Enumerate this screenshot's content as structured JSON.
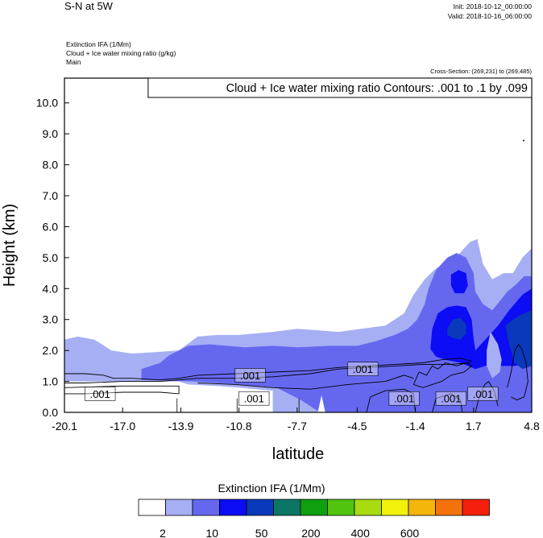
{
  "header": {
    "title": "S-N at 5W",
    "init": "Init: 2018-10-12_00:00:00",
    "valid": "Valid: 2018-10-16_06:00:00",
    "subtitle_lines": [
      "Extinction IFA   (1/Mm)",
      "Cloud + Ice water mixing ratio   (g/kg)",
      "Main"
    ],
    "cross_section": "Cross-Section: (269,231) to (269,485)"
  },
  "chart_data": {
    "type": "heatmap",
    "title": "Cloud + Ice water mixing ratio Contours: .001 to .1 by .099",
    "xlabel": "latitude",
    "ylabel": "Height (km)",
    "xlim": [
      -20.1,
      4.8
    ],
    "ylim": [
      0.0,
      10.8
    ],
    "x_ticks": [
      "-20.1",
      "-17.0",
      "-13.9",
      "-10.8",
      "-7.7",
      "-4.5",
      "-1.4",
      "1.7",
      "4.8"
    ],
    "x_tick_values": [
      -20.1,
      -17.0,
      -13.9,
      -10.8,
      -7.7,
      -4.5,
      -1.4,
      1.7,
      4.8
    ],
    "y_ticks": [
      "0.0",
      "1.0",
      "2.0",
      "3.0",
      "4.0",
      "5.0",
      "6.0",
      "7.0",
      "8.0",
      "9.0",
      "10.0"
    ],
    "y_tick_values": [
      0,
      1,
      2,
      3,
      4,
      5,
      6,
      7,
      8,
      9,
      10
    ],
    "contour_labels": [
      ".001",
      ".001",
      ".001",
      ".001",
      ".001",
      ".001",
      ".001"
    ],
    "fill_regions": [
      {
        "level": 2,
        "points": [
          [
            -20.1,
            2.35
          ],
          [
            -19.4,
            2.45
          ],
          [
            -18.5,
            2.35
          ],
          [
            -17.6,
            2.0
          ],
          [
            -16.5,
            1.9
          ],
          [
            -15.2,
            1.95
          ],
          [
            -14.0,
            2.0
          ],
          [
            -13.0,
            2.45
          ],
          [
            -12.0,
            2.5
          ],
          [
            -10.8,
            2.5
          ],
          [
            -9.0,
            2.6
          ],
          [
            -7.7,
            2.7
          ],
          [
            -6.5,
            2.65
          ],
          [
            -5.5,
            2.6
          ],
          [
            -4.3,
            2.7
          ],
          [
            -3.0,
            2.8
          ],
          [
            -2.0,
            3.2
          ],
          [
            -1.5,
            3.8
          ],
          [
            -0.9,
            4.3
          ],
          [
            -0.4,
            4.6
          ],
          [
            0.3,
            4.9
          ],
          [
            0.9,
            5.1
          ],
          [
            1.5,
            5.5
          ],
          [
            1.9,
            5.6
          ],
          [
            2.2,
            4.8
          ],
          [
            2.7,
            4.3
          ],
          [
            3.3,
            4.5
          ],
          [
            3.8,
            4.5
          ],
          [
            4.3,
            5.0
          ],
          [
            4.8,
            5.3
          ],
          [
            4.8,
            0.0
          ],
          [
            -20.1,
            0.0
          ]
        ]
      },
      {
        "level": 10,
        "points": [
          [
            -16.0,
            1.4
          ],
          [
            -15.0,
            1.6
          ],
          [
            -14.5,
            1.85
          ],
          [
            -13.5,
            2.15
          ],
          [
            -12.4,
            2.2
          ],
          [
            -10.5,
            2.1
          ],
          [
            -9.0,
            2.15
          ],
          [
            -7.7,
            2.1
          ],
          [
            -6.0,
            2.15
          ],
          [
            -4.5,
            2.15
          ],
          [
            -3.5,
            2.3
          ],
          [
            -2.5,
            2.5
          ],
          [
            -1.8,
            2.7
          ],
          [
            -1.3,
            3.0
          ],
          [
            -0.9,
            3.5
          ],
          [
            -0.7,
            4.0
          ],
          [
            -0.3,
            4.6
          ],
          [
            0.3,
            5.0
          ],
          [
            0.8,
            5.15
          ],
          [
            1.3,
            5.0
          ],
          [
            1.7,
            4.5
          ],
          [
            1.8,
            3.9
          ],
          [
            2.2,
            3.5
          ],
          [
            2.7,
            3.3
          ],
          [
            3.1,
            3.6
          ],
          [
            3.5,
            3.9
          ],
          [
            3.9,
            4.1
          ],
          [
            4.4,
            4.4
          ],
          [
            4.8,
            4.4
          ],
          [
            4.8,
            0.0
          ],
          [
            -6.5,
            0.0
          ],
          [
            -7.5,
            0.4
          ],
          [
            -8.8,
            0.8
          ],
          [
            -10.8,
            0.9
          ],
          [
            -13.2,
            1.0
          ],
          [
            -16.0,
            1.05
          ]
        ]
      },
      {
        "level": 50,
        "points": [
          [
            -0.6,
            2.05
          ],
          [
            -0.5,
            2.7
          ],
          [
            -0.2,
            3.2
          ],
          [
            0.3,
            3.4
          ],
          [
            0.8,
            3.45
          ],
          [
            1.3,
            3.4
          ],
          [
            1.6,
            3.0
          ],
          [
            1.7,
            2.4
          ],
          [
            1.8,
            2.0
          ],
          [
            2.4,
            2.4
          ],
          [
            3.0,
            2.8
          ],
          [
            3.6,
            3.3
          ],
          [
            4.3,
            3.8
          ],
          [
            4.8,
            4.0
          ],
          [
            4.8,
            1.6
          ],
          [
            3.9,
            1.5
          ],
          [
            3.2,
            1.5
          ],
          [
            2.6,
            1.55
          ],
          [
            1.8,
            1.4
          ],
          [
            1.0,
            1.6
          ],
          [
            0.2,
            1.7
          ],
          [
            -0.3,
            1.8
          ]
        ]
      },
      {
        "level": 50,
        "points": [
          [
            0.5,
            4.45
          ],
          [
            0.9,
            4.6
          ],
          [
            1.3,
            4.5
          ],
          [
            1.4,
            4.1
          ],
          [
            1.2,
            3.85
          ],
          [
            0.7,
            3.85
          ],
          [
            0.5,
            4.1
          ]
        ]
      },
      {
        "level": 100,
        "points": [
          [
            0.3,
            2.7
          ],
          [
            0.6,
            3.0
          ],
          [
            1.0,
            3.05
          ],
          [
            1.3,
            2.85
          ],
          [
            1.3,
            2.55
          ],
          [
            1.0,
            2.35
          ],
          [
            0.6,
            2.4
          ],
          [
            0.3,
            2.5
          ]
        ]
      },
      {
        "level": 100,
        "points": [
          [
            3.4,
            2.8
          ],
          [
            3.8,
            3.0
          ],
          [
            4.2,
            3.15
          ],
          [
            4.8,
            3.3
          ],
          [
            4.8,
            1.5
          ],
          [
            4.3,
            1.4
          ],
          [
            3.9,
            1.6
          ],
          [
            3.6,
            2.2
          ]
        ]
      },
      {
        "level": 2,
        "points": [
          [
            2.4,
            2.0
          ],
          [
            2.6,
            2.6
          ],
          [
            3.0,
            2.2
          ],
          [
            3.2,
            1.7
          ],
          [
            3.1,
            1.3
          ],
          [
            2.7,
            1.1
          ],
          [
            2.4,
            1.5
          ]
        ]
      },
      {
        "level": 0,
        "points": [
          [
            -20.1,
            1.0
          ],
          [
            -14.0,
            1.0
          ],
          [
            -13.5,
            0.9
          ],
          [
            -12.0,
            0.85
          ],
          [
            -10.8,
            0.8
          ],
          [
            -9.0,
            0.7
          ],
          [
            -9.0,
            0.0
          ],
          [
            -20.1,
            0.0
          ]
        ]
      },
      {
        "level": 0,
        "points": [
          [
            -6.6,
            0.0
          ],
          [
            -6.4,
            0.55
          ],
          [
            -6.2,
            0.0
          ]
        ]
      }
    ],
    "contour_lines": [
      [
        [
          -20.1,
          0.95
        ],
        [
          -19.0,
          0.95
        ],
        [
          -17.0,
          1.0
        ],
        [
          -15.0,
          1.0
        ],
        [
          -14.0,
          1.05
        ],
        [
          -13.0,
          1.1
        ],
        [
          -11.0,
          1.1
        ],
        [
          -9.0,
          1.15
        ],
        [
          -7.0,
          1.25
        ],
        [
          -5.5,
          1.4
        ],
        [
          -4.0,
          1.45
        ],
        [
          -2.5,
          1.5
        ],
        [
          -1.0,
          1.55
        ],
        [
          0.5,
          1.55
        ],
        [
          1.5,
          1.6
        ]
      ],
      [
        [
          -20.1,
          1.25
        ],
        [
          -19.0,
          1.25
        ],
        [
          -18.0,
          1.2
        ],
        [
          -17.5,
          1.1
        ],
        [
          -16.5,
          1.1
        ],
        [
          -15.0,
          1.05
        ],
        [
          -14.0,
          1.1
        ],
        [
          -13.0,
          1.2
        ],
        [
          -11.0,
          1.25
        ],
        [
          -9.0,
          1.3
        ],
        [
          -7.0,
          1.35
        ],
        [
          -5.5,
          1.45
        ],
        [
          -4.0,
          1.5
        ],
        [
          -2.5,
          1.55
        ],
        [
          -1.0,
          1.6
        ],
        [
          0.0,
          1.7
        ],
        [
          1.0,
          1.75
        ],
        [
          1.6,
          1.65
        ]
      ],
      [
        [
          -20.1,
          0.6
        ],
        [
          -19.0,
          0.6
        ],
        [
          -17.0,
          0.65
        ],
        [
          -15.0,
          0.65
        ],
        [
          -14.0,
          0.6
        ],
        [
          -14.0,
          0.85
        ],
        [
          -17.0,
          0.85
        ],
        [
          -20.1,
          0.8
        ]
      ],
      [
        [
          -13.0,
          0.95
        ],
        [
          -11.0,
          0.9
        ],
        [
          -9.0,
          0.8
        ],
        [
          -7.0,
          0.75
        ],
        [
          -5.0,
          0.9
        ],
        [
          -3.0,
          1.0
        ],
        [
          -2.0,
          1.2
        ],
        [
          -1.5,
          1.1
        ]
      ],
      [
        [
          -1.5,
          0.9
        ],
        [
          -1.2,
          1.3
        ],
        [
          -0.8,
          1.2
        ],
        [
          -0.5,
          1.5
        ],
        [
          -0.2,
          1.4
        ],
        [
          0.2,
          1.6
        ],
        [
          0.8,
          1.5
        ],
        [
          1.3,
          1.6
        ],
        [
          1.6,
          1.5
        ],
        [
          1.2,
          1.3
        ],
        [
          0.5,
          1.2
        ],
        [
          0.0,
          1.0
        ],
        [
          -0.5,
          0.9
        ],
        [
          -1.0,
          0.8
        ],
        [
          -1.5,
          0.9
        ]
      ],
      [
        [
          1.8,
          0.0
        ],
        [
          2.0,
          0.5
        ],
        [
          2.3,
          0.9
        ],
        [
          2.5,
          1.0
        ],
        [
          2.8,
          0.7
        ],
        [
          3.0,
          0.2
        ]
      ],
      [
        [
          3.5,
          0.8
        ],
        [
          3.7,
          1.3
        ],
        [
          3.9,
          2.0
        ],
        [
          4.1,
          2.2
        ],
        [
          4.3,
          2.0
        ],
        [
          4.5,
          1.6
        ],
        [
          4.6,
          1.0
        ],
        [
          4.4,
          0.5
        ],
        [
          4.0,
          0.4
        ],
        [
          3.7,
          0.5
        ]
      ],
      [
        [
          -4.0,
          0.0
        ],
        [
          -3.8,
          0.5
        ],
        [
          -3.0,
          0.7
        ],
        [
          -2.0,
          0.75
        ],
        [
          -1.5,
          0.6
        ],
        [
          -1.4,
          0.0
        ]
      ],
      [
        [
          -0.5,
          0.0
        ],
        [
          -0.3,
          0.45
        ],
        [
          0.5,
          0.6
        ],
        [
          1.0,
          0.4
        ],
        [
          1.1,
          0.0
        ]
      ]
    ],
    "colorbar": {
      "title": "Extinction IFA  (1/Mm)",
      "colors": [
        "#ffffff",
        "#a6aff4",
        "#6568ef",
        "#0c0cf5",
        "#0a39bb",
        "#0c7566",
        "#0ea00e",
        "#52c30e",
        "#a8db10",
        "#f1f10c",
        "#f5b60c",
        "#f4720c",
        "#f4200c"
      ],
      "tick_labels": [
        "2",
        "10",
        "50",
        "200",
        "400",
        "600"
      ]
    }
  }
}
